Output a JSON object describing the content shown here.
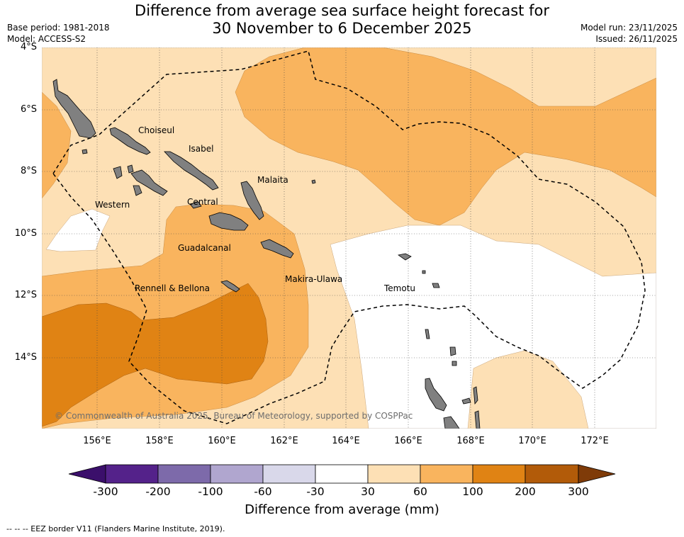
{
  "title": {
    "line1": "Difference from average sea surface height forecast for",
    "line2": "30 November to 6 December 2025"
  },
  "meta": {
    "base_period": "Base period: 1981-2018",
    "model": "Model: ACCESS-S2",
    "model_run": "Model run: 23/11/2025",
    "issued": "Issued: 26/11/2025"
  },
  "axes": {
    "lat_labels": [
      "4°S",
      "6°S",
      "8°S",
      "10°S",
      "12°S",
      "14°S"
    ],
    "lon_labels": [
      "156°E",
      "158°E",
      "160°E",
      "162°E",
      "164°E",
      "166°E",
      "168°E",
      "170°E",
      "172°E"
    ],
    "lat_range": [
      -16.3,
      -4.0
    ],
    "lon_range": [
      154.2,
      174.0
    ],
    "grid": "dotted"
  },
  "regions": [
    "Choiseul",
    "Isabel",
    "Malaita",
    "Western",
    "Central",
    "Guadalcanal",
    "Makira-Ulawa",
    "Rennell & Bellona",
    "Temotu"
  ],
  "copyright": "© Commonwealth of Australia 2025, Bureau of Meteorology, supported by COSPPac",
  "colorbar": {
    "title": "Difference from average (mm)",
    "ticks": [
      "-300",
      "-200",
      "-100",
      "-60",
      "-30",
      "30",
      "60",
      "100",
      "200",
      "300"
    ],
    "colors": [
      "#3b0f6b",
      "#54228a",
      "#7d6aaa",
      "#b0a6cf",
      "#d9d8ea",
      "#ffffff",
      "#fde0b5",
      "#f9b45e",
      "#e08314",
      "#b25b09",
      "#7f3b08"
    ]
  },
  "footnote": "--  --  -- EEZ border V11 (Flanders Marine Institute, 2019)."
}
